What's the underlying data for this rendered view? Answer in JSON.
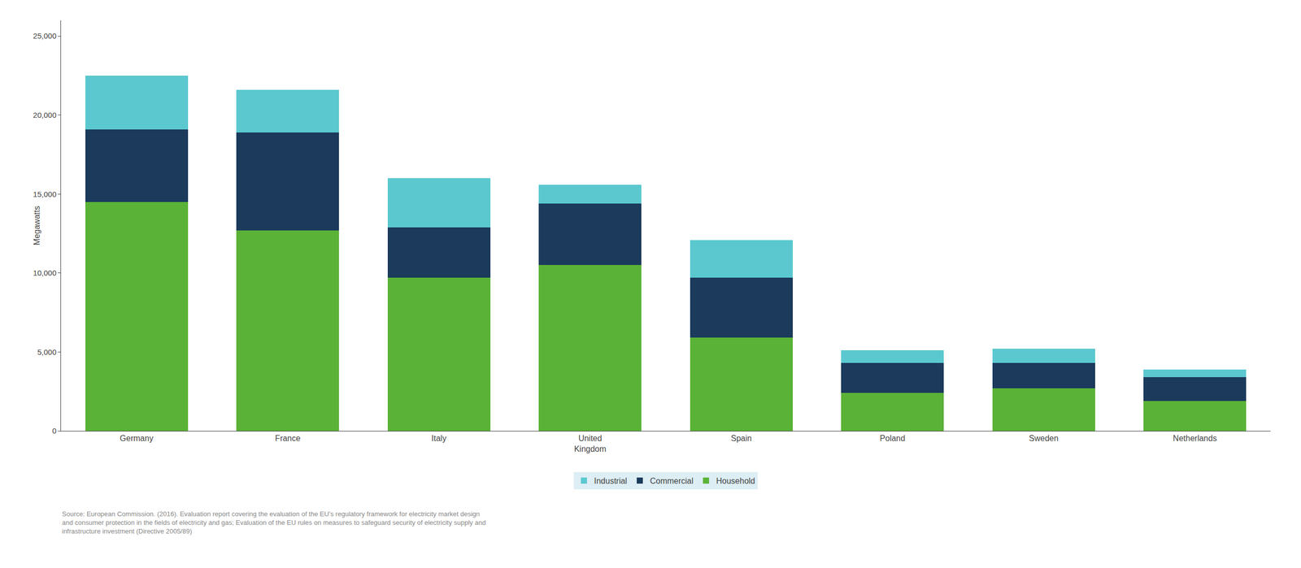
{
  "chart_data": {
    "type": "bar",
    "stacked": true,
    "categories": [
      "Germany",
      "France",
      "Italy",
      "United\nKingdom",
      "Spain",
      "Poland",
      "Sweden",
      "Netherlands"
    ],
    "series": [
      {
        "name": "Household",
        "color": "#5ab236",
        "values": [
          14500,
          12700,
          9700,
          10500,
          5900,
          2400,
          2700,
          1900
        ]
      },
      {
        "name": "Commercial",
        "color": "#1b3a5c",
        "values": [
          4600,
          6200,
          3200,
          3900,
          3800,
          1900,
          1600,
          1500
        ]
      },
      {
        "name": "Industrial",
        "color": "#5bc8d0",
        "values": [
          3400,
          2700,
          3100,
          1200,
          2400,
          800,
          900,
          500
        ]
      }
    ],
    "ylabel": "Megawatts",
    "ylim": [
      0,
      26000
    ],
    "yticks": [
      0,
      {
        "value": 5000,
        "label": "5,000"
      },
      {
        "value": 10000,
        "label": "10,000"
      },
      {
        "value": 15000,
        "label": "15,000"
      },
      {
        "value": 20000,
        "label": "20,000"
      },
      {
        "value": 25000,
        "label": "25,000"
      }
    ],
    "grid": false,
    "legend": "bottom",
    "source": "Source: European Commission. (2016). Evaluation report covering the evaluation of the EU’s regulatory framework for electricity market design\nand consumer protection in the fields of electricity and gas; Evaluation of the EU rules on measures to safeguard security of electricity supply and\ninfrastructure investment (Directive 2005/89)"
  }
}
